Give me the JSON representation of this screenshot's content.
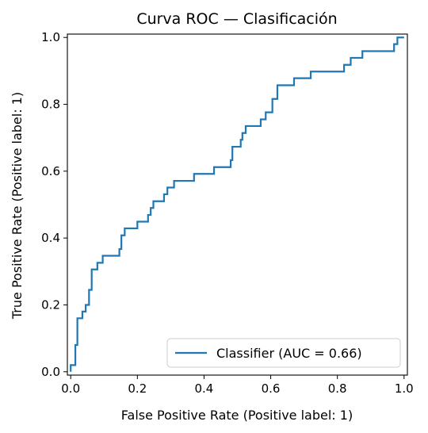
{
  "chart_data": {
    "type": "line",
    "title": "Curva ROC — Clasificación",
    "xlabel": "False Positive Rate (Positive label: 1)",
    "ylabel": "True Positive Rate (Positive label: 1)",
    "xlim": [
      -0.01,
      1.01
    ],
    "ylim": [
      -0.01,
      1.01
    ],
    "xticks": [
      0.0,
      0.2,
      0.4,
      0.6,
      0.8,
      1.0
    ],
    "yticks": [
      0.0,
      0.2,
      0.4,
      0.6,
      0.8,
      1.0
    ],
    "xtick_labels": [
      "0.0",
      "0.2",
      "0.4",
      "0.6",
      "0.8",
      "1.0"
    ],
    "ytick_labels": [
      "0.0",
      "0.2",
      "0.4",
      "0.6",
      "0.8",
      "1.0"
    ],
    "grid": false,
    "legend_position": "lower-right",
    "series": [
      {
        "name": "Classifier (AUC = 0.66)",
        "color": "#1f77b4",
        "step": true,
        "points": [
          [
            0.0,
            0.0
          ],
          [
            0.0,
            0.02
          ],
          [
            0.014,
            0.02
          ],
          [
            0.014,
            0.08
          ],
          [
            0.02,
            0.08
          ],
          [
            0.02,
            0.16
          ],
          [
            0.035,
            0.16
          ],
          [
            0.035,
            0.18
          ],
          [
            0.045,
            0.18
          ],
          [
            0.045,
            0.2
          ],
          [
            0.055,
            0.2
          ],
          [
            0.055,
            0.245
          ],
          [
            0.063,
            0.245
          ],
          [
            0.063,
            0.306
          ],
          [
            0.08,
            0.306
          ],
          [
            0.08,
            0.326
          ],
          [
            0.096,
            0.326
          ],
          [
            0.096,
            0.347
          ],
          [
            0.146,
            0.347
          ],
          [
            0.146,
            0.367
          ],
          [
            0.152,
            0.367
          ],
          [
            0.152,
            0.408
          ],
          [
            0.162,
            0.408
          ],
          [
            0.162,
            0.429
          ],
          [
            0.2,
            0.429
          ],
          [
            0.2,
            0.449
          ],
          [
            0.232,
            0.449
          ],
          [
            0.232,
            0.469
          ],
          [
            0.24,
            0.469
          ],
          [
            0.24,
            0.49
          ],
          [
            0.248,
            0.49
          ],
          [
            0.248,
            0.51
          ],
          [
            0.28,
            0.51
          ],
          [
            0.28,
            0.531
          ],
          [
            0.29,
            0.531
          ],
          [
            0.29,
            0.551
          ],
          [
            0.31,
            0.551
          ],
          [
            0.31,
            0.571
          ],
          [
            0.37,
            0.571
          ],
          [
            0.37,
            0.592
          ],
          [
            0.43,
            0.592
          ],
          [
            0.43,
            0.612
          ],
          [
            0.48,
            0.612
          ],
          [
            0.48,
            0.633
          ],
          [
            0.485,
            0.633
          ],
          [
            0.485,
            0.673
          ],
          [
            0.51,
            0.673
          ],
          [
            0.51,
            0.694
          ],
          [
            0.515,
            0.694
          ],
          [
            0.515,
            0.714
          ],
          [
            0.525,
            0.714
          ],
          [
            0.525,
            0.735
          ],
          [
            0.57,
            0.735
          ],
          [
            0.57,
            0.755
          ],
          [
            0.585,
            0.755
          ],
          [
            0.585,
            0.776
          ],
          [
            0.605,
            0.776
          ],
          [
            0.605,
            0.816
          ],
          [
            0.62,
            0.816
          ],
          [
            0.62,
            0.857
          ],
          [
            0.67,
            0.857
          ],
          [
            0.67,
            0.878
          ],
          [
            0.72,
            0.878
          ],
          [
            0.72,
            0.898
          ],
          [
            0.82,
            0.898
          ],
          [
            0.82,
            0.918
          ],
          [
            0.84,
            0.918
          ],
          [
            0.84,
            0.939
          ],
          [
            0.875,
            0.939
          ],
          [
            0.875,
            0.959
          ],
          [
            0.97,
            0.959
          ],
          [
            0.97,
            0.98
          ],
          [
            0.98,
            0.98
          ],
          [
            0.98,
            1.0
          ],
          [
            1.0,
            1.0
          ]
        ]
      }
    ]
  }
}
